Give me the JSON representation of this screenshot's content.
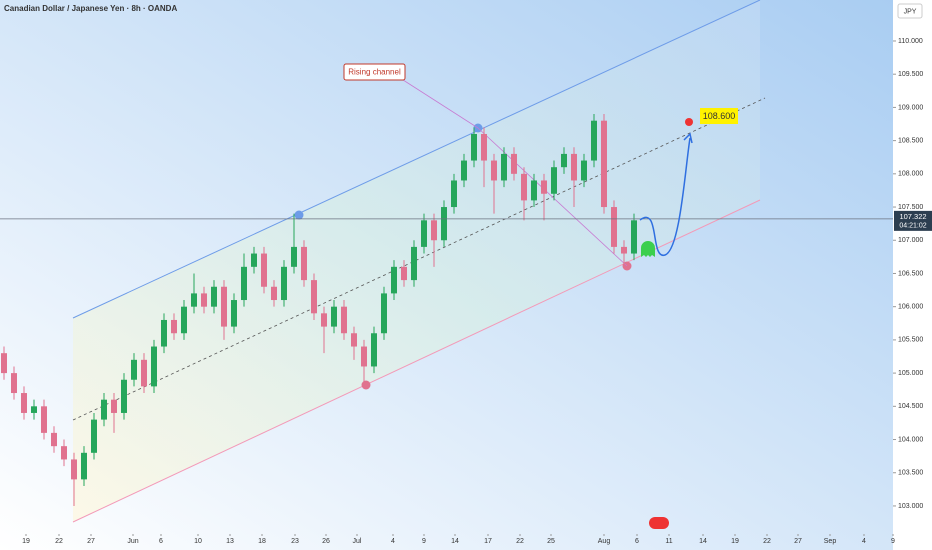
{
  "chart_data": {
    "type": "candlestick",
    "title": "Canadian Dollar / Japanese Yen · 8h · OANDA",
    "currency": "JPY",
    "annotation": "Rising channel",
    "target_label": "108.600",
    "last_price": {
      "value": 107.322,
      "label": "107.322"
    },
    "countdown": "04:21:02",
    "up_color": "#26a65b",
    "down_color": "#e0728f",
    "x": [
      0,
      1,
      2,
      3,
      4,
      5,
      6,
      7,
      8,
      9,
      10,
      11,
      12,
      13,
      14,
      15,
      16,
      17,
      18,
      19,
      20,
      21,
      22,
      23,
      24,
      25,
      26,
      27,
      28,
      29,
      30,
      31,
      32,
      33,
      34,
      35,
      36,
      37,
      38,
      39,
      40,
      41,
      42,
      43,
      44,
      45,
      46,
      47,
      48,
      49,
      50,
      51,
      52,
      53,
      54,
      55,
      56,
      57,
      58,
      59,
      60,
      61,
      62,
      63
    ],
    "open": [
      105.3,
      105.0,
      104.7,
      104.4,
      104.5,
      104.1,
      103.9,
      103.7,
      103.4,
      103.8,
      104.3,
      104.6,
      104.4,
      104.9,
      105.2,
      104.8,
      105.4,
      105.8,
      105.6,
      106.0,
      106.2,
      106.0,
      106.3,
      105.7,
      106.1,
      106.6,
      106.8,
      106.3,
      106.1,
      106.6,
      106.9,
      106.4,
      105.9,
      105.7,
      106.0,
      105.6,
      105.4,
      105.1,
      105.6,
      106.2,
      106.6,
      106.4,
      106.9,
      107.3,
      107.0,
      107.5,
      107.9,
      108.2,
      108.6,
      108.2,
      107.9,
      108.3,
      108.0,
      107.6,
      107.9,
      107.7,
      108.1,
      108.3,
      107.9,
      108.2,
      108.8,
      107.5,
      106.9,
      106.8
    ],
    "high": [
      105.4,
      105.1,
      104.8,
      104.6,
      104.6,
      104.2,
      104.0,
      103.8,
      103.9,
      104.4,
      104.7,
      104.7,
      105.0,
      105.3,
      105.3,
      105.5,
      105.9,
      105.9,
      106.1,
      106.5,
      106.3,
      106.4,
      106.4,
      106.2,
      106.8,
      106.9,
      106.9,
      106.4,
      106.7,
      107.4,
      107.0,
      106.5,
      106.0,
      106.1,
      106.1,
      105.7,
      105.5,
      105.7,
      106.3,
      106.7,
      106.7,
      107.0,
      107.4,
      107.4,
      107.6,
      108.0,
      108.3,
      108.7,
      108.7,
      108.3,
      108.4,
      108.4,
      108.1,
      108.0,
      108.0,
      108.2,
      108.4,
      108.4,
      108.3,
      108.9,
      108.9,
      107.6,
      107.0,
      107.4
    ],
    "low": [
      104.9,
      104.6,
      104.3,
      104.3,
      104.0,
      103.8,
      103.6,
      103.0,
      103.3,
      103.7,
      104.2,
      104.1,
      104.3,
      104.8,
      104.7,
      104.7,
      105.3,
      105.5,
      105.5,
      105.9,
      105.9,
      105.9,
      105.5,
      105.6,
      106.0,
      106.5,
      106.2,
      106.0,
      106.0,
      106.5,
      106.3,
      105.8,
      105.3,
      105.6,
      105.5,
      105.2,
      104.8,
      105.0,
      105.5,
      106.1,
      106.3,
      106.3,
      106.8,
      106.6,
      106.9,
      107.4,
      107.8,
      108.1,
      107.8,
      107.4,
      107.8,
      107.9,
      107.3,
      107.5,
      107.3,
      107.6,
      108.0,
      107.5,
      107.8,
      108.1,
      107.4,
      106.8,
      106.6,
      106.7
    ],
    "close": [
      105.0,
      104.7,
      104.4,
      104.5,
      104.1,
      103.9,
      103.7,
      103.4,
      103.8,
      104.3,
      104.6,
      104.4,
      104.9,
      105.2,
      104.8,
      105.4,
      105.8,
      105.6,
      106.0,
      106.2,
      106.0,
      106.3,
      105.7,
      106.1,
      106.6,
      106.8,
      106.3,
      106.1,
      106.6,
      106.9,
      106.4,
      105.9,
      105.7,
      106.0,
      105.6,
      105.4,
      105.1,
      105.6,
      106.2,
      106.6,
      106.4,
      106.9,
      107.3,
      107.0,
      107.5,
      107.9,
      108.2,
      108.6,
      108.2,
      107.9,
      108.3,
      108.0,
      107.6,
      107.9,
      107.7,
      108.1,
      108.3,
      107.9,
      108.2,
      108.8,
      107.5,
      106.9,
      106.8,
      107.3
    ],
    "xlim": [
      -0.4,
      88.9
    ],
    "xticks": [
      {
        "value": 2.2,
        "label": "19"
      },
      {
        "value": 5.5,
        "label": "22"
      },
      {
        "value": 8.7,
        "label": "27"
      },
      {
        "value": 12.9,
        "label": "Jun"
      },
      {
        "value": 15.7,
        "label": "6"
      },
      {
        "value": 19.4,
        "label": "10"
      },
      {
        "value": 22.6,
        "label": "13"
      },
      {
        "value": 25.8,
        "label": "18"
      },
      {
        "value": 29.1,
        "label": "23"
      },
      {
        "value": 32.2,
        "label": "26"
      },
      {
        "value": 35.3,
        "label": "Jul"
      },
      {
        "value": 38.9,
        "label": "4"
      },
      {
        "value": 42,
        "label": "9"
      },
      {
        "value": 45.1,
        "label": "14"
      },
      {
        "value": 48.4,
        "label": "17"
      },
      {
        "value": 51.6,
        "label": "22"
      },
      {
        "value": 54.7,
        "label": "25"
      },
      {
        "value": 60,
        "label": "Aug"
      },
      {
        "value": 63.3,
        "label": "6"
      },
      {
        "value": 66.5,
        "label": "11"
      },
      {
        "value": 69.9,
        "label": "14"
      },
      {
        "value": 73.1,
        "label": "19"
      },
      {
        "value": 76.3,
        "label": "22"
      },
      {
        "value": 79.4,
        "label": "27"
      },
      {
        "value": 82.6,
        "label": "Sep"
      },
      {
        "value": 86,
        "label": "4"
      },
      {
        "value": 88.9,
        "label": "9"
      }
    ],
    "ylim": [
      102.382,
      110.617
    ],
    "yticks": [
      {
        "value": 103,
        "label": "103.000"
      },
      {
        "value": 103.5,
        "label": "103.500"
      },
      {
        "value": 104,
        "label": "104.000"
      },
      {
        "value": 104.5,
        "label": "104.500"
      },
      {
        "value": 105,
        "label": "105.000"
      },
      {
        "value": 105.5,
        "label": "105.500"
      },
      {
        "value": 106,
        "label": "106.000"
      },
      {
        "value": 106.5,
        "label": "106.500"
      },
      {
        "value": 107,
        "label": "107.000"
      },
      {
        "value": 107.5,
        "label": "107.500"
      },
      {
        "value": 108,
        "label": "108.000"
      },
      {
        "value": 108.5,
        "label": "108.500"
      },
      {
        "value": 109,
        "label": "109.000"
      },
      {
        "value": 109.5,
        "label": "109.500"
      },
      {
        "value": 110,
        "label": "110.000"
      }
    ]
  }
}
